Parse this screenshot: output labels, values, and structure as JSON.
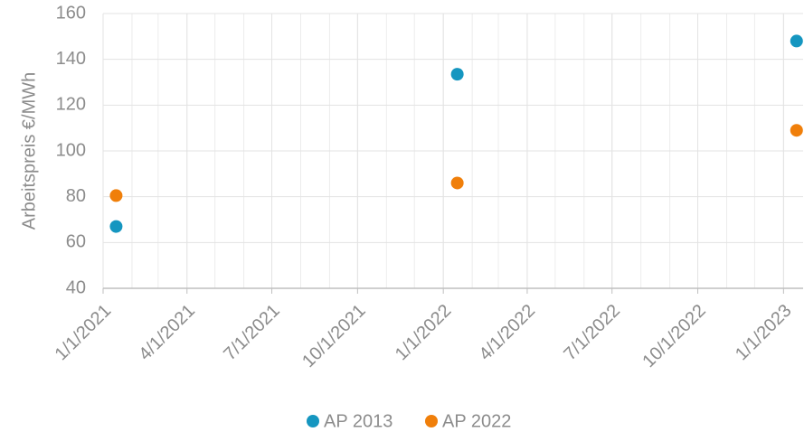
{
  "chart_data": {
    "type": "scatter",
    "ylabel": "Arbeitspreis €/MWh",
    "series": [
      {
        "name": "AP 2013",
        "color": "#1596c0",
        "x": [
          "2021-01-15",
          "2022-01-16",
          "2023-01-15"
        ],
        "values": [
          67,
          133.5,
          148
        ]
      },
      {
        "name": "AP 2022",
        "color": "#f07f0a",
        "x": [
          "2021-01-15",
          "2022-01-16",
          "2023-01-15"
        ],
        "values": [
          80.5,
          86,
          109
        ]
      }
    ],
    "xlim": [
      "2021-01-01",
      "2023-01-22"
    ],
    "xticks": [
      {
        "value": "2021-01-01",
        "label": "1/1/2021"
      },
      {
        "value": "2021-04-01",
        "label": "4/1/2021"
      },
      {
        "value": "2021-07-01",
        "label": "7/1/2021"
      },
      {
        "value": "2021-10-01",
        "label": "10/1/2021"
      },
      {
        "value": "2022-01-01",
        "label": "1/1/2022"
      },
      {
        "value": "2022-04-01",
        "label": "4/1/2022"
      },
      {
        "value": "2022-07-01",
        "label": "7/1/2022"
      },
      {
        "value": "2022-10-01",
        "label": "10/1/2022"
      },
      {
        "value": "2023-01-01",
        "label": "1/1/2023"
      }
    ],
    "ylim": [
      40,
      160
    ],
    "yticks": [
      40,
      60,
      80,
      100,
      120,
      140,
      160
    ],
    "grid": true,
    "legend": "bottom"
  }
}
